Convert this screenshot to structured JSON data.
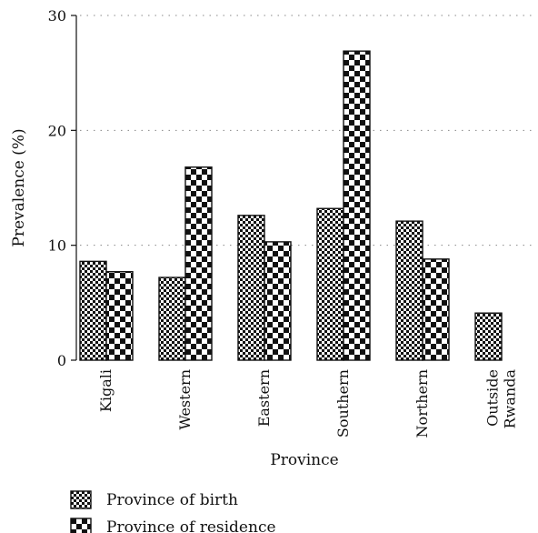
{
  "chart_data": {
    "type": "bar",
    "categories": [
      [
        "Kigali"
      ],
      [
        "Western"
      ],
      [
        "Eastern"
      ],
      [
        "Southern"
      ],
      [
        "Northern"
      ],
      [
        "Outside",
        "Rwanda"
      ]
    ],
    "series": [
      {
        "name": "Province of birth",
        "values": [
          8.6,
          7.2,
          12.6,
          13.2,
          12.1,
          4.1
        ],
        "pattern": "fine-checker"
      },
      {
        "name": "Province of residence",
        "values": [
          7.7,
          16.8,
          10.3,
          26.9,
          8.8,
          null
        ],
        "pattern": "coarse-checker"
      }
    ],
    "xlabel": "Province",
    "ylabel": "Prevalence (%)",
    "ylim": [
      0,
      30
    ],
    "yticks": [
      0,
      10,
      20,
      30
    ],
    "grid": "dotted-horizontal",
    "legend_position": "bottom-left",
    "colors": {
      "ink": "#111111",
      "fill": "#ffffff",
      "grid": "#888888"
    }
  }
}
